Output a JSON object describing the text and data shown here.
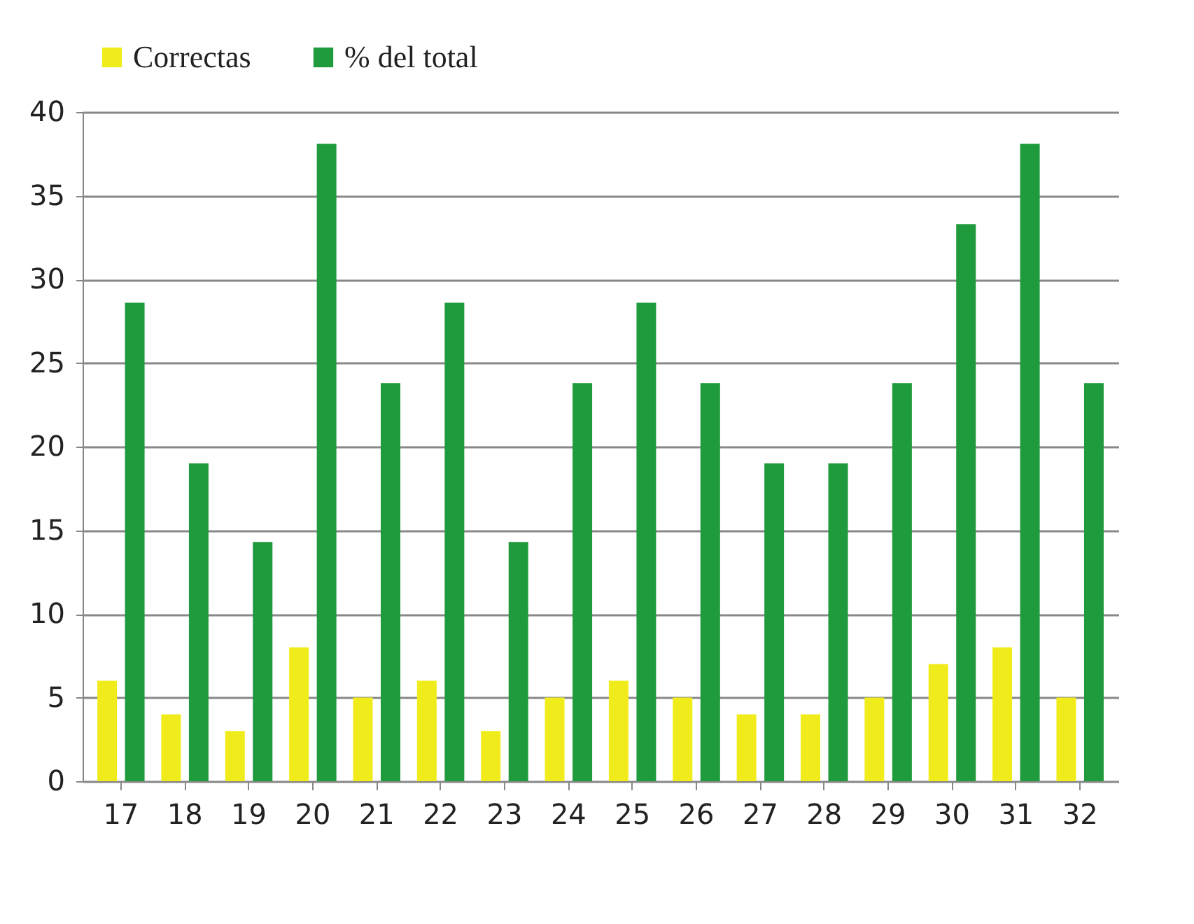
{
  "chart_data": {
    "type": "bar",
    "categories": [
      "17",
      "18",
      "19",
      "20",
      "21",
      "22",
      "23",
      "24",
      "25",
      "26",
      "27",
      "28",
      "29",
      "30",
      "31",
      "32"
    ],
    "series": [
      {
        "name": "Correctas",
        "color": "#f0ec1c",
        "values": [
          6,
          4,
          3,
          8,
          5,
          6,
          3,
          5,
          6,
          5,
          4,
          4,
          5,
          7,
          8,
          5
        ]
      },
      {
        "name": "% del total",
        "color": "#1f9a3c",
        "values": [
          28.6,
          19,
          14.3,
          38.1,
          23.8,
          28.6,
          14.3,
          23.8,
          28.6,
          23.8,
          19,
          19,
          23.8,
          33.3,
          38.1,
          23.8
        ]
      }
    ],
    "ylim": [
      0,
      40
    ],
    "yticks": [
      0,
      5,
      10,
      15,
      20,
      25,
      30,
      35,
      40
    ],
    "grid": "y",
    "legend": "top"
  }
}
